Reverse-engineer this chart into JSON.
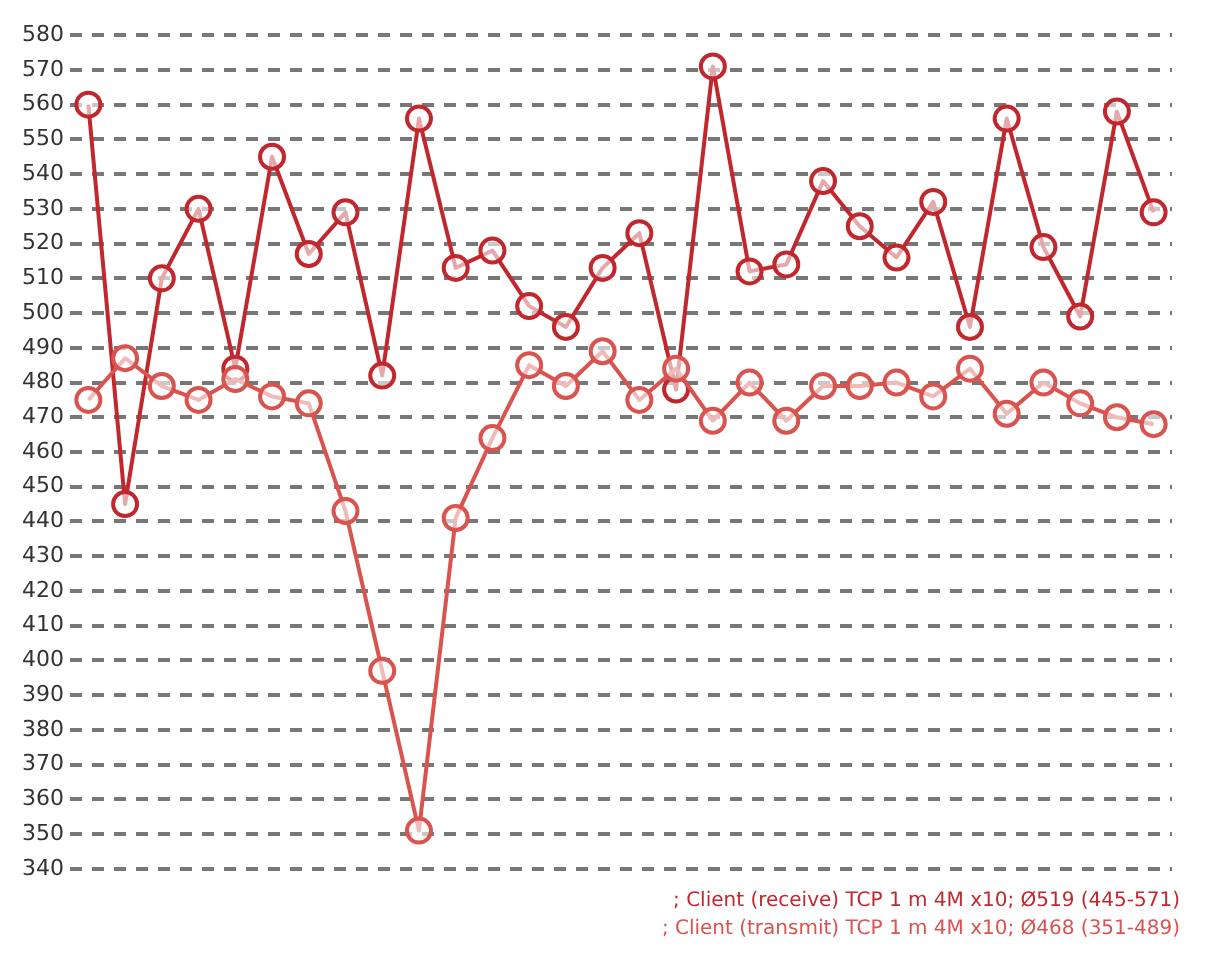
{
  "chart_data": {
    "type": "line",
    "categories": [
      null,
      null,
      null,
      null,
      null,
      null,
      null,
      null,
      null,
      null,
      null,
      null,
      null,
      null,
      null,
      null,
      null,
      null,
      null,
      null,
      null,
      null,
      null,
      null,
      null,
      null,
      null,
      null,
      null,
      null
    ],
    "series": [
      {
        "name": "; Client (receive) TCP 1 m 4M x10; Ø519 (445-571)",
        "color": "#c0282e",
        "values": [
          560,
          445,
          510,
          530,
          484,
          545,
          517,
          529,
          482,
          556,
          513,
          518,
          502,
          496,
          513,
          523,
          478,
          571,
          512,
          514,
          538,
          525,
          516,
          532,
          496,
          556,
          519,
          499,
          558,
          529
        ]
      },
      {
        "name": "; Client (transmit) TCP 1 m 4M x10; Ø468 (351-489)",
        "color": "#d9534f",
        "values": [
          475,
          487,
          479,
          475,
          481,
          476,
          474,
          443,
          397,
          351,
          441,
          464,
          485,
          479,
          489,
          475,
          484,
          469,
          480,
          469,
          479,
          479,
          480,
          476,
          484,
          471,
          480,
          474,
          470,
          468
        ]
      }
    ],
    "ylim": [
      340,
      580
    ],
    "yticks": [
      340,
      350,
      360,
      370,
      380,
      390,
      400,
      410,
      420,
      430,
      440,
      450,
      460,
      470,
      480,
      490,
      500,
      510,
      520,
      530,
      540,
      550,
      560,
      570,
      580
    ],
    "grid": "y",
    "tick_labels": "y",
    "legend": "bottom right",
    "marker": "circle",
    "line_style": "solid"
  }
}
